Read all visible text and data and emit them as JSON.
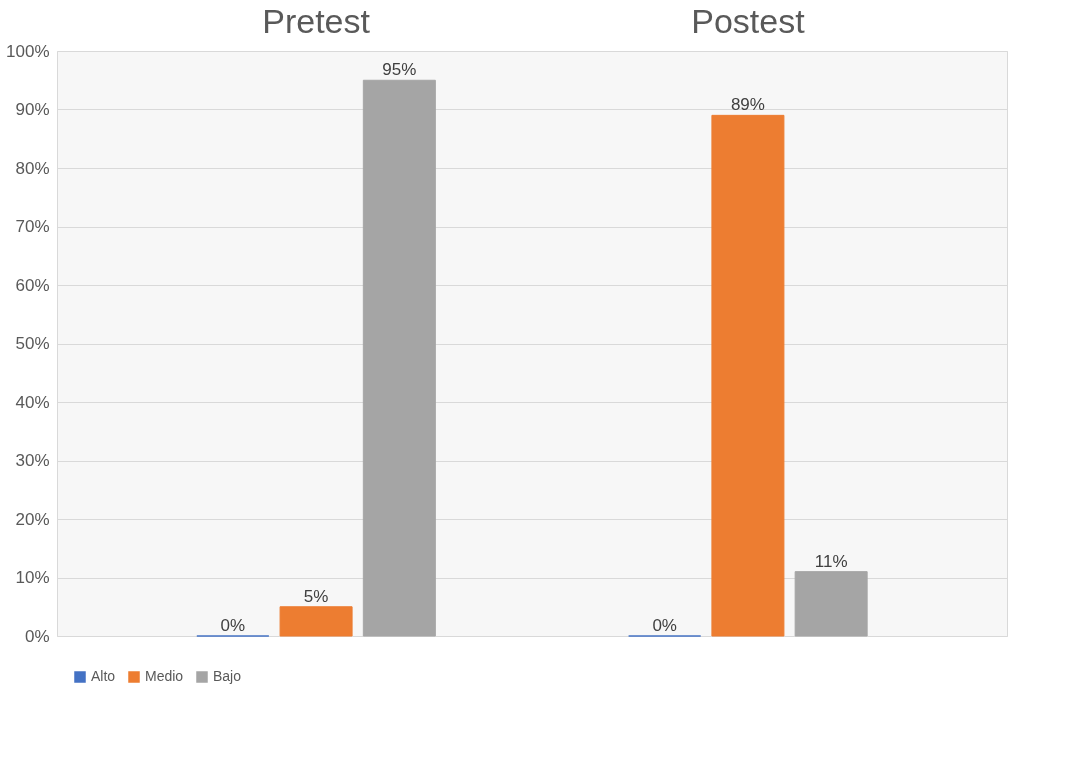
{
  "chart_data": {
    "type": "bar",
    "categories": [
      "Pretest",
      "Postest"
    ],
    "series": [
      {
        "name": "Alto",
        "color": "#4472c4",
        "values": [
          0,
          0
        ],
        "value_labels": [
          "0%",
          "0%"
        ]
      },
      {
        "name": "Medio",
        "color": "#ed7d31",
        "values": [
          5,
          89
        ],
        "value_labels": [
          "5%",
          "89%"
        ]
      },
      {
        "name": "Bajo",
        "color": "#a5a5a5",
        "values": [
          95,
          11
        ],
        "value_labels": [
          "95%",
          "11%"
        ]
      }
    ],
    "ylim": [
      0,
      100
    ],
    "yticks": [
      {
        "value": 0,
        "label": "0%"
      },
      {
        "value": 10,
        "label": "10%"
      },
      {
        "value": 20,
        "label": "20%"
      },
      {
        "value": 30,
        "label": "30%"
      },
      {
        "value": 40,
        "label": "40%"
      },
      {
        "value": 50,
        "label": "50%"
      },
      {
        "value": 60,
        "label": "60%"
      },
      {
        "value": 70,
        "label": "70%"
      },
      {
        "value": 80,
        "label": "80%"
      },
      {
        "value": 90,
        "label": "90%"
      },
      {
        "value": 100,
        "label": "100%"
      }
    ],
    "grid": "y",
    "legend": "bottom"
  }
}
